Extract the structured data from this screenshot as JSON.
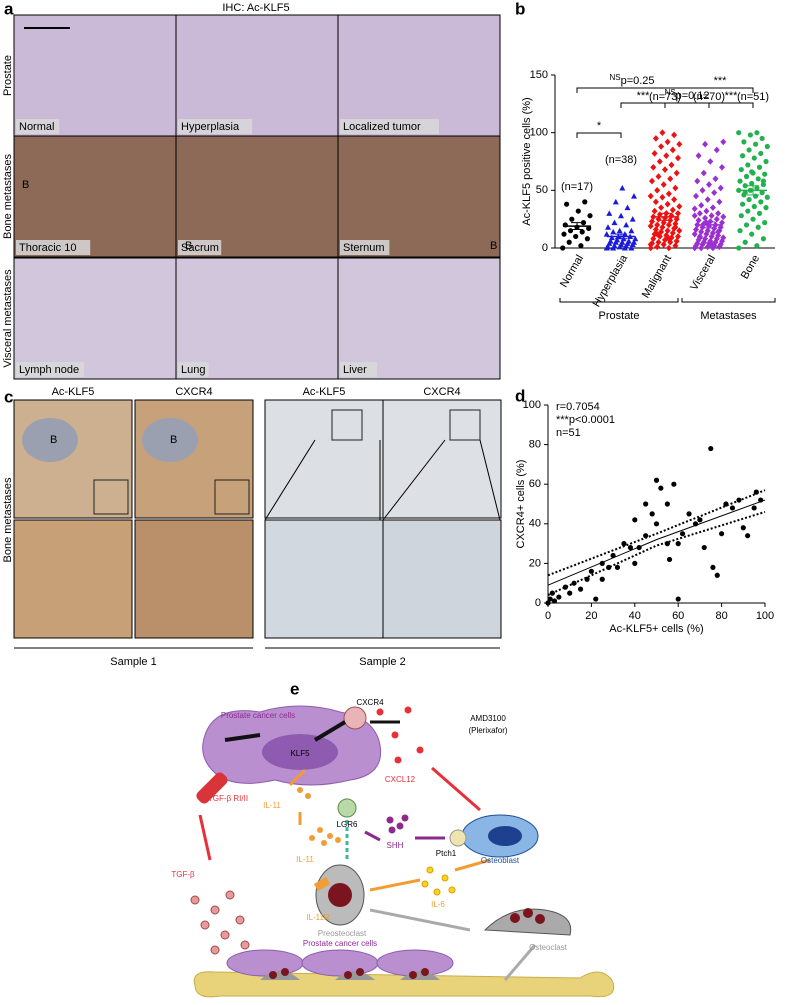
{
  "panel_a": {
    "letter": "a",
    "title": "IHC: Ac-KLF5",
    "row_labels": [
      "Prostate",
      "Bone metastases",
      "Visceral metastases"
    ],
    "images": [
      [
        "Normal",
        "Hyperplasia",
        "Localized tumor"
      ],
      [
        "Thoracic 10",
        "Sacrum",
        "Sternum"
      ],
      [
        "Lymph node",
        "Lung",
        "Liver"
      ]
    ],
    "bone_markers": [
      "B",
      "B",
      "B"
    ]
  },
  "panel_c": {
    "letter": "c",
    "columns": [
      "Ac-KLF5",
      "CXCR4",
      "Ac-KLF5",
      "CXCR4"
    ],
    "bone_markers": [
      "B",
      "B"
    ],
    "row_label": "Bone metastases",
    "samples": [
      "Sample 1",
      "Sample 2"
    ]
  },
  "chart_data": [
    {
      "type": "dot",
      "letter": "b",
      "ylabel": "Ac-KLF5 positive cells (%)",
      "categories": [
        "Normal",
        "Hyperplasia",
        "Malignant",
        "Visceral",
        "Bone"
      ],
      "colors": [
        "#000000",
        "#1a1adb",
        "#ee1111",
        "#9b30d0",
        "#22b14c"
      ],
      "markers": [
        "circle",
        "triangle",
        "diamond",
        "diamond",
        "circle"
      ],
      "values": [
        [
          0,
          2,
          5,
          8,
          10,
          12,
          14,
          15,
          17,
          18,
          20,
          22,
          25,
          28,
          32,
          38,
          40
        ],
        [
          0,
          0,
          0,
          0,
          1,
          1,
          2,
          2,
          3,
          3,
          4,
          4,
          5,
          5,
          5,
          6,
          6,
          7,
          8,
          8,
          9,
          10,
          10,
          12,
          12,
          14,
          15,
          15,
          18,
          20,
          22,
          25,
          28,
          30,
          35,
          40,
          45,
          52
        ],
        [
          0,
          0,
          1,
          2,
          3,
          4,
          5,
          5,
          6,
          7,
          8,
          9,
          10,
          10,
          11,
          12,
          13,
          14,
          15,
          15,
          16,
          17,
          18,
          19,
          20,
          20,
          21,
          22,
          23,
          24,
          25,
          25,
          26,
          27,
          28,
          29,
          30,
          30,
          32,
          33,
          35,
          36,
          38,
          40,
          42,
          44,
          45,
          47,
          50,
          52,
          55,
          58,
          60,
          62,
          65,
          68,
          70,
          72,
          75,
          78,
          80,
          82,
          85,
          88,
          90,
          92,
          95,
          98,
          100,
          3,
          8,
          12,
          18
        ],
        [
          0,
          0,
          0,
          1,
          1,
          2,
          2,
          3,
          3,
          4,
          4,
          5,
          5,
          6,
          6,
          7,
          8,
          8,
          9,
          10,
          10,
          11,
          12,
          12,
          13,
          14,
          15,
          15,
          16,
          17,
          18,
          18,
          19,
          20,
          20,
          21,
          22,
          23,
          24,
          25,
          26,
          27,
          28,
          30,
          30,
          32,
          34,
          35,
          37,
          40,
          42,
          45,
          48,
          50,
          52,
          55,
          58,
          60,
          65,
          70,
          75,
          80,
          85,
          90,
          92,
          3,
          9,
          14,
          22,
          28
        ],
        [
          0,
          2,
          5,
          8,
          12,
          15,
          18,
          20,
          22,
          25,
          28,
          30,
          32,
          35,
          36,
          38,
          40,
          42,
          44,
          45,
          46,
          48,
          50,
          50,
          52,
          54,
          55,
          56,
          58,
          60,
          62,
          64,
          65,
          68,
          70,
          72,
          75,
          78,
          80,
          82,
          85,
          88,
          90,
          92,
          95,
          98,
          100,
          100,
          48,
          58,
          66
        ]
      ],
      "means": [
        19,
        10,
        27,
        20,
        50
      ],
      "errors": [
        3,
        2,
        3,
        2.5,
        4
      ],
      "n_labels": [
        "(n=17)",
        "(n=38)",
        "(n=73)",
        "(n=70)",
        "(n=51)"
      ],
      "significance": [
        {
          "sup": "NS",
          "text": "p=0.25"
        },
        {
          "text": "***"
        },
        {
          "text": "***"
        },
        {
          "sup": "NS",
          "text": "p=0.12"
        },
        {
          "text": "***"
        },
        {
          "text": "*"
        }
      ],
      "groups": [
        "Prostate",
        "Metastases"
      ],
      "ylim": [
        0,
        150
      ],
      "yticks": [
        0,
        50,
        100,
        150
      ]
    },
    {
      "type": "scatter",
      "letter": "d",
      "xlabel": "Ac-KLF5+ cells (%)",
      "ylabel": "CXCR4+ cells (%)",
      "color": "#000000",
      "x": [
        0,
        1,
        2,
        3,
        5,
        8,
        10,
        12,
        15,
        18,
        20,
        22,
        25,
        25,
        28,
        30,
        32,
        35,
        38,
        40,
        40,
        42,
        45,
        45,
        48,
        50,
        50,
        52,
        55,
        55,
        56,
        58,
        60,
        60,
        62,
        65,
        68,
        70,
        72,
        75,
        76,
        78,
        80,
        82,
        85,
        88,
        90,
        92,
        95,
        96,
        98
      ],
      "values": [
        0,
        2,
        5,
        1,
        3,
        8,
        5,
        10,
        7,
        12,
        16,
        2,
        12,
        20,
        18,
        24,
        18,
        30,
        28,
        42,
        20,
        28,
        34,
        50,
        45,
        40,
        62,
        58,
        30,
        50,
        22,
        60,
        30,
        2,
        35,
        45,
        40,
        42,
        28,
        78,
        18,
        14,
        35,
        50,
        48,
        52,
        38,
        34,
        48,
        56,
        52
      ],
      "fit": {
        "x": [
          0,
          50,
          100
        ],
        "values": [
          9,
          32,
          52
        ]
      },
      "ci_upper": {
        "x": [
          0,
          50,
          100
        ],
        "values": [
          14,
          35,
          57
        ]
      },
      "ci_lower": {
        "x": [
          0,
          50,
          100
        ],
        "values": [
          4,
          29,
          46
        ]
      },
      "annotations": [
        "r=0.7054",
        "***p<0.0001",
        "n=51"
      ],
      "xlim": [
        0,
        100
      ],
      "ylim": [
        0,
        100
      ],
      "xticks": [
        0,
        20,
        40,
        60,
        80,
        100
      ],
      "yticks": [
        0,
        20,
        40,
        60,
        80,
        100
      ]
    }
  ],
  "panel_e": {
    "letter": "e",
    "labels": [
      "Prostate cancer cells",
      "CXCR4",
      "AMD3100",
      "(Plerixafor)",
      "KLF5",
      "CXCL12",
      "TGF-β RI/II",
      "IL-11",
      "LGR6",
      "SHH",
      "Ptch1",
      "Osteoblast",
      "IL-11",
      "TGF-β",
      "IL-11R",
      "IL-6",
      "Preosteoclast",
      "Osteoclast",
      "Prostate cancer cells"
    ]
  }
}
